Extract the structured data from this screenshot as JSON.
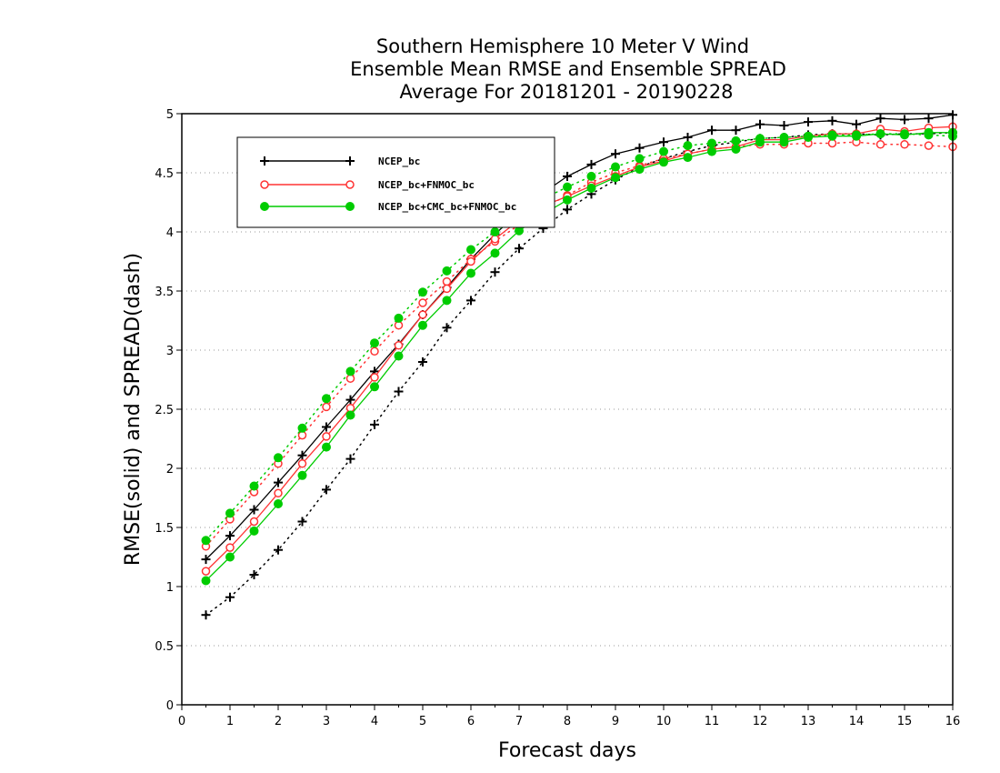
{
  "chart_data": {
    "type": "line",
    "title_lines": [
      "Southern Hemisphere 10 Meter V Wind",
      "Ensemble Mean RMSE and Ensemble SPREAD",
      "Average For 20181201 - 20190228"
    ],
    "xlabel": "Forecast days",
    "ylabel": "RMSE(solid) and SPREAD(dash)",
    "xlim": [
      0,
      16
    ],
    "ylim": [
      0,
      5
    ],
    "xticks": [
      "0",
      "1",
      "2",
      "3",
      "4",
      "5",
      "6",
      "7",
      "8",
      "9",
      "10",
      "11",
      "12",
      "13",
      "14",
      "15",
      "16"
    ],
    "yticks": [
      "0",
      "0.5",
      "1",
      "1.5",
      "2",
      "2.5",
      "3",
      "3.5",
      "4",
      "4.5",
      "5"
    ],
    "ytick_values": [
      0,
      0.5,
      1,
      1.5,
      2,
      2.5,
      3,
      3.5,
      4,
      4.5,
      5
    ],
    "grid": "horizontal-dotted",
    "legend_position": "top-left",
    "x": [
      0.5,
      1,
      1.5,
      2,
      2.5,
      3,
      3.5,
      4,
      4.5,
      5,
      5.5,
      6,
      6.5,
      7,
      7.5,
      8,
      8.5,
      9,
      9.5,
      10,
      10.5,
      11,
      11.5,
      12,
      12.5,
      13,
      13.5,
      14,
      14.5,
      15,
      15.5,
      16
    ],
    "series": [
      {
        "name": "NCEP_bc",
        "color": "#000000",
        "marker": "plus",
        "rmse": [
          1.23,
          1.43,
          1.65,
          1.88,
          2.11,
          2.35,
          2.58,
          2.82,
          3.05,
          3.3,
          3.53,
          3.77,
          3.98,
          4.17,
          4.33,
          4.47,
          4.57,
          4.66,
          4.71,
          4.76,
          4.8,
          4.86,
          4.86,
          4.91,
          4.9,
          4.93,
          4.94,
          4.91,
          4.96,
          4.95,
          4.96,
          4.99
        ],
        "spread": [
          0.76,
          0.91,
          1.1,
          1.31,
          1.55,
          1.82,
          2.08,
          2.37,
          2.65,
          2.9,
          3.19,
          3.42,
          3.66,
          3.86,
          4.03,
          4.19,
          4.32,
          4.44,
          4.55,
          4.62,
          4.68,
          4.73,
          4.76,
          4.79,
          4.8,
          4.82,
          4.83,
          4.83,
          4.82,
          4.83,
          4.83,
          4.84
        ]
      },
      {
        "name": "NCEP_bc+FNMOC_bc",
        "color": "#ff3333",
        "marker": "open-circle",
        "rmse": [
          1.13,
          1.33,
          1.55,
          1.79,
          2.04,
          2.27,
          2.51,
          2.77,
          3.04,
          3.3,
          3.52,
          3.75,
          3.94,
          4.1,
          4.22,
          4.3,
          4.39,
          4.47,
          4.55,
          4.6,
          4.66,
          4.7,
          4.72,
          4.78,
          4.78,
          4.81,
          4.83,
          4.83,
          4.87,
          4.85,
          4.88,
          4.89
        ],
        "spread": [
          1.34,
          1.57,
          1.8,
          2.04,
          2.28,
          2.52,
          2.76,
          2.99,
          3.21,
          3.4,
          3.58,
          3.77,
          3.92,
          4.06,
          4.2,
          4.31,
          4.42,
          4.5,
          4.56,
          4.62,
          4.66,
          4.7,
          4.72,
          4.74,
          4.74,
          4.75,
          4.75,
          4.76,
          4.74,
          4.74,
          4.73,
          4.72
        ]
      },
      {
        "name": "NCEP_bc+CMC_bc+FNMOC_bc",
        "color": "#00cc00",
        "marker": "filled-circle",
        "rmse": [
          1.05,
          1.25,
          1.47,
          1.7,
          1.94,
          2.18,
          2.45,
          2.69,
          2.95,
          3.21,
          3.42,
          3.65,
          3.82,
          4.01,
          4.15,
          4.27,
          4.37,
          4.46,
          4.53,
          4.59,
          4.63,
          4.68,
          4.7,
          4.76,
          4.76,
          4.8,
          4.81,
          4.81,
          4.83,
          4.82,
          4.84,
          4.84
        ],
        "spread": [
          1.39,
          1.62,
          1.85,
          2.09,
          2.34,
          2.59,
          2.82,
          3.06,
          3.27,
          3.49,
          3.67,
          3.85,
          4.0,
          4.14,
          4.28,
          4.38,
          4.47,
          4.55,
          4.62,
          4.68,
          4.73,
          4.75,
          4.77,
          4.79,
          4.8,
          4.81,
          4.82,
          4.82,
          4.83,
          4.83,
          4.82,
          4.81
        ]
      }
    ]
  }
}
